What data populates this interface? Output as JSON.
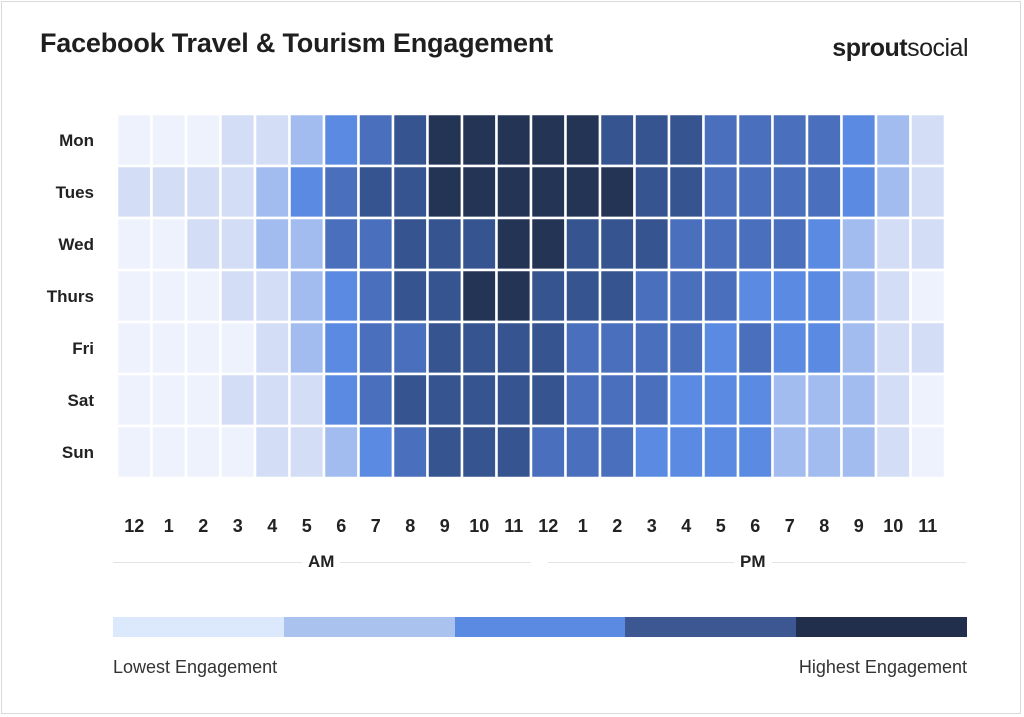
{
  "header": {
    "title": "Facebook Travel & Tourism Engagement",
    "brand_part1": "sprout",
    "brand_part2": "social"
  },
  "chart_data": {
    "type": "heatmap",
    "title": "Facebook Travel & Tourism Engagement",
    "rows": [
      "Mon",
      "Tues",
      "Wed",
      "Thurs",
      "Fri",
      "Sat",
      "Sun"
    ],
    "columns": [
      "12",
      "1",
      "2",
      "3",
      "4",
      "5",
      "6",
      "7",
      "8",
      "9",
      "10",
      "11",
      "12",
      "1",
      "2",
      "3",
      "4",
      "5",
      "6",
      "7",
      "8",
      "9",
      "10",
      "11"
    ],
    "periods": [
      {
        "label": "AM",
        "from_index": 0,
        "to_index": 11
      },
      {
        "label": "PM",
        "from_index": 12,
        "to_index": 23
      }
    ],
    "scale": {
      "levels": 7,
      "colors": [
        "#eef2fc",
        "#d3ddf6",
        "#a2bcef",
        "#5b8ae2",
        "#4a6fbc",
        "#36548f",
        "#243455"
      ],
      "low_label": "Lowest Engagement",
      "high_label": "Highest Engagement"
    },
    "values": [
      [
        0,
        0,
        0,
        1,
        1,
        2,
        3,
        4,
        5,
        6,
        6,
        6,
        6,
        6,
        5,
        5,
        5,
        4,
        4,
        4,
        4,
        3,
        2,
        1
      ],
      [
        1,
        1,
        1,
        1,
        2,
        3,
        4,
        5,
        5,
        6,
        6,
        6,
        6,
        6,
        6,
        5,
        5,
        4,
        4,
        4,
        4,
        3,
        2,
        1
      ],
      [
        0,
        0,
        1,
        1,
        2,
        2,
        4,
        4,
        5,
        5,
        5,
        6,
        6,
        5,
        5,
        5,
        4,
        4,
        4,
        4,
        3,
        2,
        1,
        1
      ],
      [
        0,
        0,
        0,
        1,
        1,
        2,
        3,
        4,
        5,
        5,
        6,
        6,
        5,
        5,
        5,
        4,
        4,
        4,
        3,
        3,
        3,
        2,
        1,
        0
      ],
      [
        0,
        0,
        0,
        0,
        1,
        2,
        3,
        4,
        4,
        5,
        5,
        5,
        5,
        4,
        4,
        4,
        4,
        3,
        4,
        3,
        3,
        2,
        1,
        1
      ],
      [
        0,
        0,
        0,
        1,
        1,
        1,
        3,
        4,
        5,
        5,
        5,
        5,
        5,
        4,
        4,
        4,
        3,
        3,
        3,
        2,
        2,
        2,
        1,
        0
      ],
      [
        0,
        0,
        0,
        0,
        1,
        1,
        2,
        3,
        4,
        5,
        5,
        5,
        4,
        4,
        4,
        3,
        3,
        3,
        3,
        2,
        2,
        2,
        1,
        0
      ]
    ],
    "legend_colors": [
      "#dce8fb",
      "#a9c3ee",
      "#5b8ae2",
      "#3d5793",
      "#212f4c"
    ],
    "legend_placement": "bottom"
  }
}
